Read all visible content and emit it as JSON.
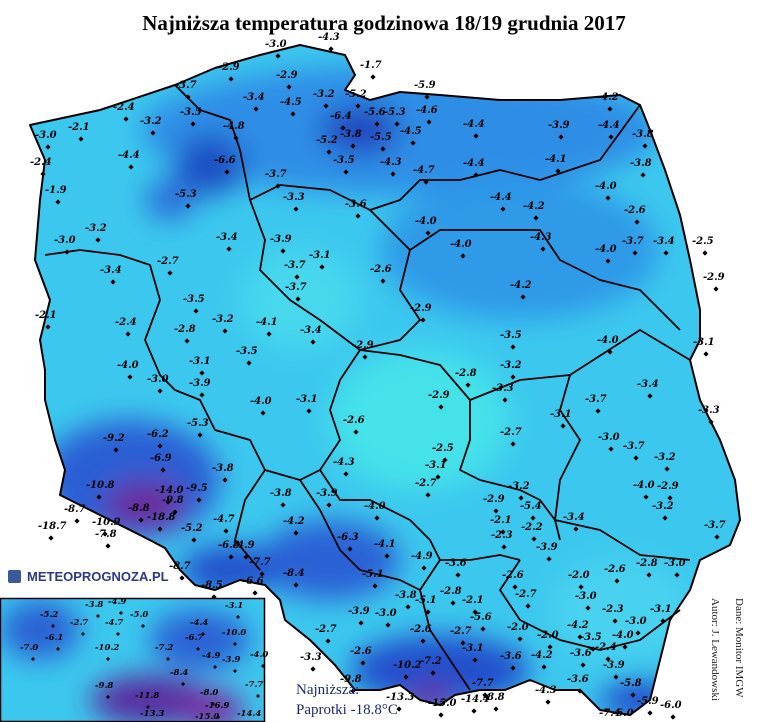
{
  "title": "Najniższa temperatura godzinowa 18/19 grudnia 2017",
  "logo": "METEOPROGNOZA.PL",
  "credits": [
    "Autor: J. Lewandowski",
    "Dane: Monitor IMGW"
  ],
  "record": {
    "label": "Najniższa:",
    "text": "Paprotki -18.8°C"
  },
  "map_labels": [
    "-3.0",
    "-4.3",
    "-1.7",
    "-2.9",
    "-2.9",
    "-3.7",
    "-3.4",
    "-4.5",
    "-3.2",
    "-5.2",
    "-5.9",
    "-4.2",
    "-2.4",
    "-3.2",
    "-3.5",
    "-6.4",
    "-5.6",
    "-5.3",
    "-4.6",
    "-4.4",
    "-3.9",
    "-4.4",
    "-3.8",
    "-3.0",
    "-2.1",
    "-4.8",
    "-3.8",
    "-5.5",
    "-4.5",
    "-5.2",
    "-2.4",
    "-4.4",
    "-6.6",
    "-3.5",
    "-4.3",
    "-4.4",
    "-4.1",
    "-3.8",
    "-4.7",
    "-3.7",
    "-1.9",
    "-5.3",
    "-4.0",
    "-3.3",
    "-3.6",
    "-4.4",
    "-4.2",
    "-2.6",
    "-3.2",
    "-3.0",
    "-3.4",
    "-3.9",
    "-4.0",
    "-4.0",
    "-4.3",
    "-3.7",
    "-4.0",
    "-3.4",
    "-2.5",
    "-3.1",
    "-3.7",
    "-2.6",
    "-2.7",
    "-3.4",
    "-4.2",
    "-2.9",
    "-3.7",
    "-2.1",
    "-3.5",
    "-3.2",
    "-4.1",
    "-2.4",
    "-2.8",
    "-3.4",
    "-2.9",
    "-3.5",
    "-4.0",
    "-3.1",
    "-3.5",
    "-2.9",
    "-3.2",
    "-3.1",
    "-4.0",
    "-2.8",
    "-3.4",
    "-3.0",
    "-3.9",
    "-3.3",
    "-3.7",
    "-4.0",
    "-3.1",
    "-2.9",
    "-3.1",
    "-3.3",
    "-5.3",
    "-2.6",
    "-2.7",
    "-3.0",
    "-3.7",
    "-3.2",
    "-9.2",
    "-6.2",
    "-6.9",
    "-3.8",
    "-2.5",
    "-4.3",
    "-3.1",
    "-4.0",
    "-2.9",
    "-2.7",
    "-10.8",
    "-14.0",
    "-9.5",
    "-3.8",
    "-3.9",
    "-3.2",
    "-2.9",
    "-3.2",
    "-8.7",
    "-8.8",
    "-9.8",
    "-18.8",
    "-18.7",
    "-10.9",
    "-7.8",
    "-4.7",
    "-4.2",
    "-4.0",
    "-5.4",
    "-2.1",
    "-2.2",
    "-3.4",
    "-3.7",
    "-5.2",
    "-6.8",
    "-4.9",
    "-6.3",
    "-4.1",
    "-4.9",
    "-3.6",
    "-2.3",
    "-3.9",
    "-3.0",
    "-7.7",
    "-8.4",
    "-6.6",
    "-8.5",
    "-8.7",
    "-5.1",
    "-2.6",
    "-2.0",
    "-2.6",
    "-2.8",
    "-3.8",
    "-2.8",
    "-2.7",
    "-3.0",
    "-3.9",
    "-5.1",
    "-2.1",
    "-2.3",
    "-3.1",
    "-2.7",
    "-3.0",
    "-5.6",
    "-2.0",
    "-4.2",
    "-3.0",
    "-3.3",
    "-2.6",
    "-2.7",
    "-2.0",
    "-3.5",
    "-4.0",
    "-2.6",
    "-10.2",
    "-3.1",
    "-3.6",
    "-4.2",
    "-3.6",
    "-9.8",
    "-7.2",
    "-7.7",
    "-4.3",
    "-3.6",
    "-13.3",
    "-15.0",
    "-14.4",
    "-8.8",
    "-5.9",
    "-7.4",
    "-6.0",
    "-6.0",
    "-5.8",
    "-3.9",
    "-2.4"
  ],
  "inset_labels": [
    "-5.2",
    "-3.8",
    "-4.9",
    "-5.0",
    "-3.1",
    "-2.7",
    "-4.7",
    "-6.1",
    "-4.4",
    "-10.0",
    "-7.0",
    "-10.2",
    "-7.2",
    "-6.7",
    "-4.9",
    "-3.9",
    "-4.0",
    "-8.4",
    "-7.7",
    "-9.8",
    "-11.8",
    "-8.0",
    "-16.9",
    "-14.4",
    "-13.3",
    "-15.0"
  ]
}
